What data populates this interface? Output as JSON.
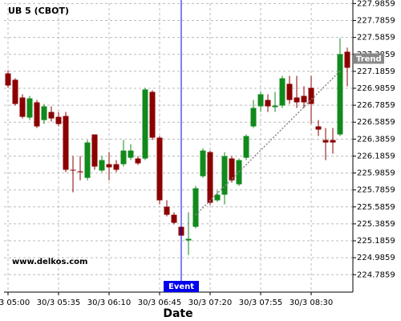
{
  "chart_data": {
    "type": "candlestick",
    "title": "UB 5 (CBOT)",
    "xlabel": "Date",
    "watermark": "www.delkos.com",
    "categories": [
      "30/3 05:00",
      null,
      null,
      null,
      null,
      null,
      null,
      "30/3 05:35",
      null,
      null,
      null,
      null,
      null,
      null,
      "30/3 06:10",
      null,
      null,
      null,
      null,
      null,
      null,
      "30/3 06:45",
      null,
      null,
      null,
      null,
      null,
      null,
      "30/3 07:20",
      null,
      null,
      null,
      null,
      null,
      null,
      "30/3 07:55",
      null,
      null,
      null,
      null,
      null,
      null,
      "30/3 08:30",
      null,
      null,
      null,
      null,
      null
    ],
    "open": [
      227.161,
      227.086,
      226.877,
      226.64,
      226.82,
      226.611,
      226.706,
      226.649,
      226.659,
      226.024,
      226.006,
      225.929,
      226.441,
      226.015,
      226.09,
      226.09,
      226.09,
      226.166,
      226.157,
      226.157,
      226.943,
      226.403,
      225.588,
      225.493,
      225.351,
      225.19,
      225.351,
      225.948,
      226.233,
      225.664,
      225.73,
      226.157,
      225.853,
      226.166,
      226.536,
      226.773,
      226.848,
      226.763,
      226.782,
      227.038,
      226.877,
      226.896,
      226.991,
      226.536,
      226.375,
      226.375,
      226.441,
      227.417
    ],
    "high": [
      227.199,
      227.104,
      226.915,
      226.896,
      226.848,
      226.801,
      226.773,
      226.706,
      226.706,
      226.185,
      226.185,
      226.375,
      226.441,
      226.185,
      226.233,
      226.138,
      226.375,
      226.327,
      226.185,
      226.991,
      226.962,
      226.422,
      225.664,
      225.521,
      225.379,
      225.521,
      225.834,
      226.279,
      226.251,
      225.777,
      226.233,
      226.185,
      226.157,
      226.441,
      226.848,
      226.943,
      226.915,
      226.943,
      227.133,
      227.133,
      227.133,
      227.01,
      227.133,
      226.611,
      226.517,
      226.517,
      227.578,
      227.465
    ],
    "low": [
      226.991,
      226.782,
      226.63,
      226.611,
      226.517,
      226.564,
      226.593,
      226.536,
      225.996,
      225.758,
      225.9,
      225.9,
      226.024,
      225.996,
      225.9,
      225.996,
      226.062,
      226.138,
      226.081,
      226.138,
      226.375,
      225.616,
      225.474,
      225.379,
      225.209,
      225.019,
      225.332,
      225.929,
      225.607,
      225.645,
      225.616,
      225.872,
      225.834,
      226.138,
      226.517,
      226.706,
      226.706,
      226.706,
      226.754,
      226.801,
      226.754,
      226.754,
      226.564,
      226.422,
      226.138,
      226.214,
      226.422,
      227.01
    ],
    "close": [
      227.019,
      226.801,
      226.649,
      226.867,
      226.536,
      226.773,
      226.63,
      226.564,
      226.024,
      226.015,
      225.996,
      226.346,
      226.062,
      226.138,
      226.053,
      226.024,
      226.251,
      226.251,
      226.1,
      226.972,
      226.403,
      225.664,
      225.493,
      225.398,
      225.247,
      225.209,
      225.806,
      226.251,
      225.635,
      225.73,
      226.185,
      225.9,
      226.138,
      226.422,
      226.754,
      226.915,
      226.773,
      226.782,
      227.104,
      226.848,
      226.82,
      226.82,
      226.801,
      226.498,
      226.346,
      226.346,
      227.389,
      227.228
    ],
    "up_color": "#118a1c",
    "down_color": "#8b0000",
    "ylim": [
      224.58,
      227.99
    ],
    "yticks": [
      224.7859,
      224.9859,
      225.1859,
      225.3859,
      225.5859,
      225.7859,
      225.9859,
      226.1859,
      226.3859,
      226.5859,
      226.7859,
      226.9859,
      227.1859,
      227.3859,
      227.5859,
      227.7859,
      227.9859
    ],
    "grid": true,
    "event": {
      "label": "Event",
      "index": 24,
      "color": "#0000ee"
    },
    "trend": {
      "label": "Trend",
      "start_index": 26,
      "start_value": 225.49,
      "end_index": 46,
      "end_value": 227.19,
      "color": "#888888"
    }
  }
}
